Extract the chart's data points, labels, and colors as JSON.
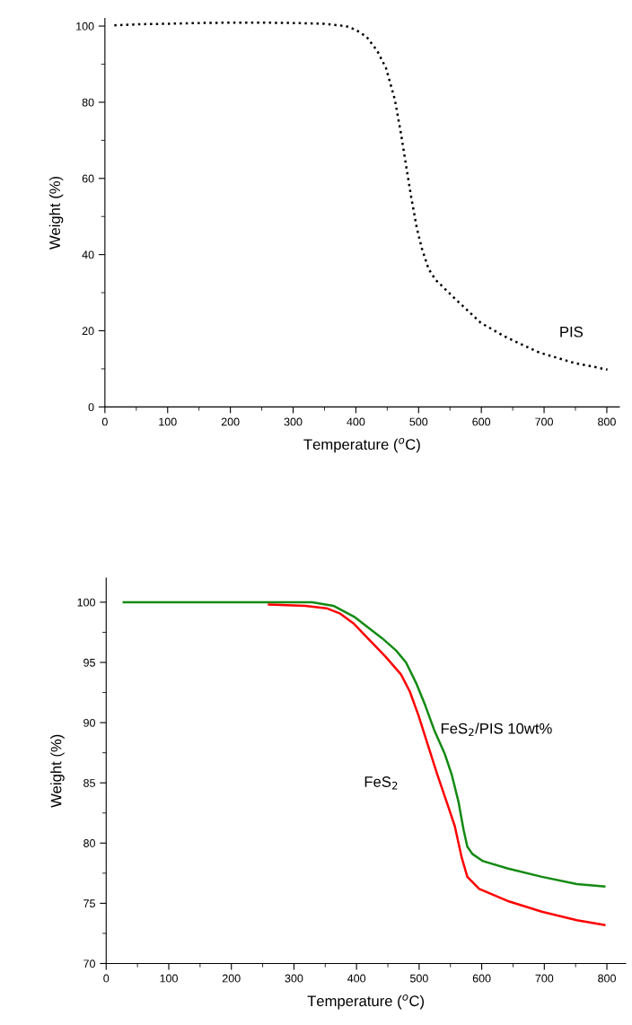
{
  "chart_data": [
    {
      "type": "line",
      "xlabel": "Temperature ($^{o}$C)",
      "ylabel": "Weight (%)",
      "xlim": [
        0,
        820
      ],
      "ylim": [
        0,
        102
      ],
      "xticks": [
        0,
        100,
        200,
        300,
        400,
        500,
        600,
        700,
        800
      ],
      "yticks": [
        0,
        20,
        40,
        60,
        80,
        100
      ],
      "grid": false,
      "line_style": "dotted",
      "series": [
        {
          "color": "#000000",
          "x": [
            15,
            60,
            100,
            150,
            200,
            250,
            300,
            350,
            384,
            400,
            417,
            434,
            448,
            462,
            472,
            480,
            488,
            497,
            505,
            516,
            527,
            555,
            599,
            637,
            692,
            747,
            801
          ],
          "values": [
            100.2,
            100.5,
            100.6,
            100.8,
            100.9,
            100.9,
            100.8,
            100.6,
            100,
            99,
            97.2,
            93.5,
            89,
            80.8,
            71.7,
            63.4,
            55.3,
            47.1,
            41.7,
            36.2,
            33.4,
            28.9,
            22.1,
            18.5,
            14.3,
            11.6,
            9.8
          ]
        }
      ],
      "annotations": [
        "PIS"
      ]
    },
    {
      "type": "line",
      "xlabel": "Temperature ($^{o}$C)",
      "ylabel": "Weight (%)",
      "xlim": [
        0,
        830
      ],
      "ylim": [
        70,
        102
      ],
      "xticks": [
        0,
        100,
        200,
        300,
        400,
        500,
        600,
        700,
        800
      ],
      "yticks": [
        70,
        75,
        80,
        85,
        90,
        95,
        100
      ],
      "grid": false,
      "line_style": "solid",
      "series": [
        {
          "color": "#138a13",
          "x": [
            28,
            329,
            363,
            396,
            441,
            463,
            479,
            496,
            510,
            524,
            541,
            552,
            563,
            571,
            577,
            585,
            602,
            641,
            696,
            752,
            796
          ],
          "values": [
            100,
            100,
            99.7,
            98.8,
            97.0,
            96.0,
            95.0,
            93.2,
            91.4,
            89.4,
            87.4,
            85.7,
            83.4,
            81.1,
            79.7,
            79.1,
            78.5,
            77.9,
            77.2,
            76.6,
            76.4
          ]
        },
        {
          "color": "#ff0000",
          "x": [
            260,
            318,
            352,
            374,
            396,
            418,
            446,
            471,
            485,
            499,
            513,
            529,
            546,
            557,
            568,
            577,
            596,
            641,
            696,
            752,
            796
          ],
          "values": [
            99.8,
            99.7,
            99.5,
            99.05,
            98.2,
            97.0,
            95.5,
            94.0,
            92.6,
            90.6,
            88.3,
            85.7,
            83.1,
            81.4,
            78.8,
            77.2,
            76.2,
            75.2,
            74.3,
            73.6,
            73.2
          ]
        }
      ],
      "annotations": [
        {
          "text": "FeS$_{2}$/PIS 10wt%",
          "x": 524,
          "y": 89.4
        },
        {
          "text": "FeS$_{2}$",
          "x": 527,
          "y": 85.5
        }
      ]
    }
  ]
}
